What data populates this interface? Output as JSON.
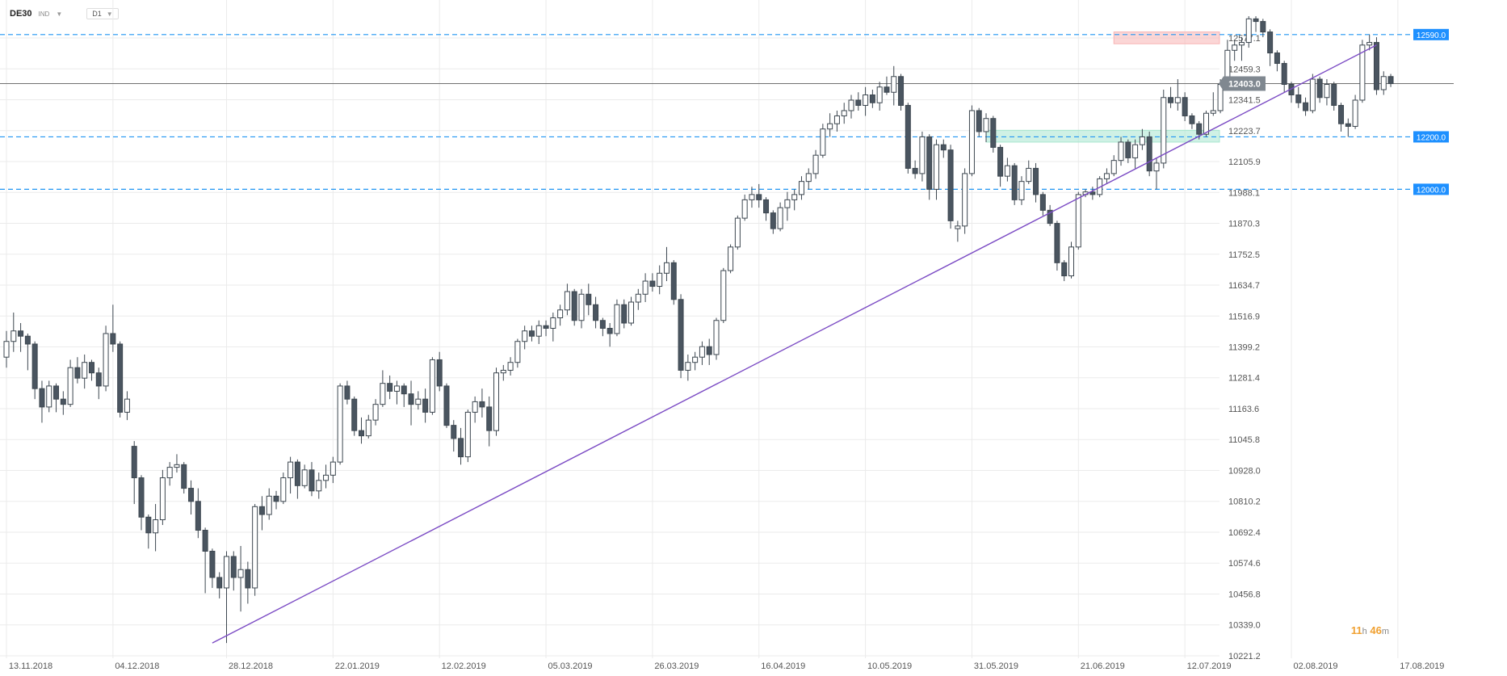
{
  "header": {
    "symbol": "DE30",
    "symbol_type": "IND",
    "timeframe": "D1"
  },
  "timer": {
    "hours": "11",
    "h_unit": "h",
    "minutes": "46",
    "m_unit": "m"
  },
  "colors": {
    "bull_fill": "#ffffff",
    "bear_fill": "#4a5560",
    "wick": "#3d4750",
    "grid": "#ebebeb",
    "dash_line": "#2196f3",
    "trend": "#7b4bc4",
    "tag": "#1e90ff",
    "price_tag": "#808890"
  },
  "chart_data": {
    "type": "candlestick",
    "title": "",
    "xlabel": "",
    "ylabel": "",
    "ylim": [
      10221.2,
      12695.0
    ],
    "yticks": [
      10221.2,
      10339.0,
      10456.8,
      10574.6,
      10692.4,
      10810.2,
      10928.0,
      11045.8,
      11163.6,
      11281.4,
      11399.2,
      11516.9,
      11634.7,
      11752.5,
      11870.3,
      11988.1,
      12105.9,
      12223.7,
      12341.5,
      12459.3,
      12577.1
    ],
    "ytick_labels": [
      "10221.2",
      "10339.0",
      "10456.8",
      "10574.6",
      "10692.4",
      "10810.2",
      "10928.0",
      "11045.8",
      "11163.6",
      "11281.4",
      "11399.2",
      "11516.9",
      "11634.7",
      "11752.5",
      "11870.3",
      "11988.1",
      "12105.9",
      "12223.7",
      "12341.5",
      "12459.3",
      "12577.1"
    ],
    "xticks": [
      {
        "index": 0,
        "label": "13.11.2018"
      },
      {
        "index": 15,
        "label": "04.12.2018"
      },
      {
        "index": 31,
        "label": "28.12.2018"
      },
      {
        "index": 46,
        "label": "22.01.2019"
      },
      {
        "index": 61,
        "label": "12.02.2019"
      },
      {
        "index": 76,
        "label": "05.03.2019"
      },
      {
        "index": 91,
        "label": "26.03.2019"
      },
      {
        "index": 106,
        "label": "16.04.2019"
      },
      {
        "index": 121,
        "label": "10.05.2019"
      },
      {
        "index": 136,
        "label": "31.05.2019"
      },
      {
        "index": 151,
        "label": "21.06.2019"
      },
      {
        "index": 166,
        "label": "12.07.2019"
      },
      {
        "index": 181,
        "label": "02.08.2019"
      },
      {
        "index": 196,
        "label": "17.08.2019"
      }
    ],
    "levels": [
      {
        "name": "resistance",
        "value": 12590.0,
        "label": "12590.0"
      },
      {
        "name": "support-mid",
        "value": 12200.0,
        "label": "12200.0"
      },
      {
        "name": "support-low",
        "value": 12000.0,
        "label": "12000.0"
      }
    ],
    "zones": [
      {
        "name": "resistance-zone",
        "from_index": 156,
        "to_index": 192,
        "low": 12555,
        "high": 12600,
        "color": "#f8b4b4"
      },
      {
        "name": "support-zone",
        "from_index": 138,
        "to_index": 192,
        "low": 12180,
        "high": 12225,
        "color": "#a8e6cf"
      }
    ],
    "current_price": {
      "value": 12403.0,
      "label": "12403.0"
    },
    "trendline": {
      "from": {
        "index": 29,
        "value": 10270
      },
      "to": {
        "index": 193,
        "value": 12550
      }
    },
    "candles": [
      [
        11360,
        11460,
        11320,
        11420
      ],
      [
        11420,
        11530,
        11380,
        11460
      ],
      [
        11460,
        11490,
        11380,
        11440
      ],
      [
        11440,
        11450,
        11310,
        11410
      ],
      [
        11410,
        11420,
        11200,
        11240
      ],
      [
        11240,
        11270,
        11110,
        11170
      ],
      [
        11170,
        11270,
        11150,
        11250
      ],
      [
        11250,
        11260,
        11150,
        11200
      ],
      [
        11200,
        11230,
        11140,
        11180
      ],
      [
        11180,
        11350,
        11170,
        11320
      ],
      [
        11320,
        11360,
        11260,
        11280
      ],
      [
        11280,
        11370,
        11240,
        11340
      ],
      [
        11340,
        11350,
        11270,
        11300
      ],
      [
        11300,
        11320,
        11200,
        11250
      ],
      [
        11250,
        11480,
        11230,
        11450
      ],
      [
        11450,
        11560,
        11380,
        11410
      ],
      [
        11410,
        11420,
        11130,
        11150
      ],
      [
        11150,
        11230,
        11120,
        11200
      ],
      [
        11020,
        11040,
        10800,
        10900
      ],
      [
        10900,
        10910,
        10700,
        10750
      ],
      [
        10750,
        10760,
        10630,
        10690
      ],
      [
        10690,
        10800,
        10620,
        10740
      ],
      [
        10740,
        10930,
        10720,
        10900
      ],
      [
        10900,
        10960,
        10870,
        10940
      ],
      [
        10940,
        10990,
        10920,
        10950
      ],
      [
        10950,
        10960,
        10840,
        10860
      ],
      [
        10860,
        10890,
        10760,
        10810
      ],
      [
        10810,
        10860,
        10670,
        10700
      ],
      [
        10700,
        10710,
        10460,
        10620
      ],
      [
        10620,
        10630,
        10480,
        10520
      ],
      [
        10520,
        10540,
        10440,
        10480
      ],
      [
        10480,
        10620,
        10270,
        10600
      ],
      [
        10600,
        10620,
        10470,
        10520
      ],
      [
        10520,
        10640,
        10390,
        10550
      ],
      [
        10550,
        10580,
        10420,
        10480
      ],
      [
        10480,
        10800,
        10450,
        10790
      ],
      [
        10790,
        10830,
        10700,
        10760
      ],
      [
        10760,
        10860,
        10740,
        10830
      ],
      [
        10830,
        10850,
        10780,
        10810
      ],
      [
        10810,
        10920,
        10800,
        10900
      ],
      [
        10900,
        10980,
        10840,
        10960
      ],
      [
        10960,
        10970,
        10820,
        10870
      ],
      [
        10870,
        10950,
        10860,
        10930
      ],
      [
        10930,
        10960,
        10830,
        10850
      ],
      [
        10850,
        10920,
        10820,
        10890
      ],
      [
        10890,
        10950,
        10860,
        10910
      ],
      [
        10910,
        10980,
        10880,
        10960
      ],
      [
        10960,
        11260,
        10950,
        11250
      ],
      [
        11250,
        11270,
        11180,
        11200
      ],
      [
        11200,
        11210,
        11060,
        11080
      ],
      [
        11080,
        11130,
        11030,
        11060
      ],
      [
        11060,
        11140,
        11050,
        11120
      ],
      [
        11120,
        11200,
        11100,
        11180
      ],
      [
        11180,
        11310,
        11170,
        11260
      ],
      [
        11260,
        11290,
        11200,
        11230
      ],
      [
        11230,
        11270,
        11180,
        11250
      ],
      [
        11250,
        11260,
        11170,
        11220
      ],
      [
        11220,
        11270,
        11100,
        11180
      ],
      [
        11180,
        11230,
        11160,
        11200
      ],
      [
        11200,
        11240,
        11110,
        11150
      ],
      [
        11150,
        11360,
        11140,
        11350
      ],
      [
        11350,
        11380,
        11230,
        11250
      ],
      [
        11250,
        11260,
        11090,
        11100
      ],
      [
        11100,
        11120,
        11000,
        11050
      ],
      [
        11050,
        11090,
        10950,
        10980
      ],
      [
        10980,
        11160,
        10960,
        11150
      ],
      [
        11150,
        11210,
        11110,
        11190
      ],
      [
        11190,
        11240,
        11130,
        11170
      ],
      [
        11170,
        11210,
        11020,
        11080
      ],
      [
        11080,
        11320,
        11060,
        11300
      ],
      [
        11300,
        11330,
        11270,
        11310
      ],
      [
        11310,
        11360,
        11290,
        11340
      ],
      [
        11340,
        11430,
        11320,
        11420
      ],
      [
        11420,
        11480,
        11390,
        11460
      ],
      [
        11460,
        11480,
        11420,
        11440
      ],
      [
        11440,
        11500,
        11410,
        11480
      ],
      [
        11480,
        11500,
        11440,
        11470
      ],
      [
        11470,
        11530,
        11420,
        11510
      ],
      [
        11510,
        11560,
        11480,
        11540
      ],
      [
        11540,
        11640,
        11520,
        11610
      ],
      [
        11610,
        11620,
        11480,
        11500
      ],
      [
        11500,
        11620,
        11470,
        11600
      ],
      [
        11600,
        11640,
        11520,
        11560
      ],
      [
        11560,
        11590,
        11470,
        11500
      ],
      [
        11500,
        11510,
        11440,
        11470
      ],
      [
        11470,
        11490,
        11400,
        11450
      ],
      [
        11450,
        11580,
        11440,
        11560
      ],
      [
        11560,
        11580,
        11470,
        11490
      ],
      [
        11490,
        11590,
        11480,
        11570
      ],
      [
        11570,
        11620,
        11540,
        11600
      ],
      [
        11600,
        11680,
        11570,
        11650
      ],
      [
        11650,
        11680,
        11610,
        11630
      ],
      [
        11630,
        11710,
        11600,
        11680
      ],
      [
        11680,
        11780,
        11650,
        11720
      ],
      [
        11720,
        11730,
        11560,
        11580
      ],
      [
        11580,
        11600,
        11280,
        11310
      ],
      [
        11310,
        11370,
        11270,
        11340
      ],
      [
        11340,
        11380,
        11310,
        11360
      ],
      [
        11360,
        11420,
        11330,
        11400
      ],
      [
        11400,
        11430,
        11330,
        11370
      ],
      [
        11370,
        11510,
        11350,
        11500
      ],
      [
        11500,
        11700,
        11490,
        11690
      ],
      [
        11690,
        11790,
        11680,
        11780
      ],
      [
        11780,
        11900,
        11770,
        11890
      ],
      [
        11890,
        11980,
        11880,
        11960
      ],
      [
        11960,
        12010,
        11930,
        11980
      ],
      [
        11980,
        12020,
        11930,
        11960
      ],
      [
        11960,
        11970,
        11880,
        11910
      ],
      [
        11910,
        11920,
        11830,
        11850
      ],
      [
        11850,
        11950,
        11840,
        11930
      ],
      [
        11930,
        11990,
        11880,
        11960
      ],
      [
        11960,
        12000,
        11920,
        11980
      ],
      [
        11980,
        12050,
        11960,
        12030
      ],
      [
        12030,
        12080,
        12000,
        12060
      ],
      [
        12060,
        12150,
        12040,
        12130
      ],
      [
        12130,
        12250,
        12120,
        12230
      ],
      [
        12230,
        12290,
        12200,
        12250
      ],
      [
        12250,
        12300,
        12220,
        12280
      ],
      [
        12280,
        12330,
        12250,
        12300
      ],
      [
        12300,
        12360,
        12270,
        12340
      ],
      [
        12340,
        12370,
        12300,
        12320
      ],
      [
        12320,
        12390,
        12280,
        12360
      ],
      [
        12360,
        12380,
        12310,
        12330
      ],
      [
        12330,
        12410,
        12300,
        12390
      ],
      [
        12390,
        12430,
        12360,
        12370
      ],
      [
        12370,
        12470,
        12320,
        12430
      ],
      [
        12430,
        12440,
        12300,
        12320
      ],
      [
        12320,
        12330,
        12060,
        12080
      ],
      [
        12080,
        12110,
        12040,
        12060
      ],
      [
        12060,
        12220,
        12030,
        12200
      ],
      [
        12200,
        12210,
        11960,
        12000
      ],
      [
        12000,
        12190,
        11960,
        12170
      ],
      [
        12170,
        12190,
        12120,
        12150
      ],
      [
        12150,
        12170,
        11850,
        11880
      ],
      [
        11850,
        11880,
        11800,
        11860
      ],
      [
        11860,
        12080,
        11830,
        12060
      ],
      [
        12060,
        12320,
        12050,
        12300
      ],
      [
        12300,
        12310,
        12200,
        12220
      ],
      [
        12220,
        12290,
        12180,
        12270
      ],
      [
        12270,
        12280,
        12140,
        12160
      ],
      [
        12160,
        12170,
        12010,
        12050
      ],
      [
        12050,
        12120,
        12030,
        12090
      ],
      [
        12090,
        12100,
        11940,
        11960
      ],
      [
        11960,
        12050,
        11940,
        12030
      ],
      [
        12030,
        12110,
        12020,
        12080
      ],
      [
        12080,
        12100,
        11950,
        11980
      ],
      [
        11980,
        11990,
        11900,
        11920
      ],
      [
        11920,
        11940,
        11860,
        11870
      ],
      [
        11870,
        11880,
        11690,
        11720
      ],
      [
        11720,
        11730,
        11650,
        11670
      ],
      [
        11670,
        11800,
        11660,
        11780
      ],
      [
        11780,
        11990,
        11770,
        11980
      ],
      [
        11980,
        12000,
        11970,
        11990
      ],
      [
        11990,
        12010,
        11960,
        11980
      ],
      [
        11980,
        12050,
        11970,
        12040
      ],
      [
        12040,
        12080,
        12020,
        12060
      ],
      [
        12060,
        12130,
        12050,
        12110
      ],
      [
        12110,
        12200,
        12090,
        12180
      ],
      [
        12180,
        12190,
        12100,
        12120
      ],
      [
        12120,
        12190,
        12080,
        12170
      ],
      [
        12170,
        12230,
        12150,
        12200
      ],
      [
        12200,
        12220,
        12050,
        12070
      ],
      [
        12070,
        12120,
        12000,
        12100
      ],
      [
        12100,
        12380,
        12080,
        12350
      ],
      [
        12350,
        12390,
        12310,
        12330
      ],
      [
        12330,
        12420,
        12300,
        12350
      ],
      [
        12350,
        12370,
        12260,
        12280
      ],
      [
        12280,
        12290,
        12230,
        12250
      ],
      [
        12250,
        12260,
        12190,
        12210
      ],
      [
        12210,
        12300,
        12200,
        12290
      ],
      [
        12290,
        12370,
        12280,
        12300
      ],
      [
        12300,
        12420,
        12290,
        12400
      ],
      [
        12400,
        12570,
        12390,
        12530
      ],
      [
        12530,
        12570,
        12490,
        12550
      ],
      [
        12550,
        12580,
        12490,
        12560
      ],
      [
        12560,
        12660,
        12540,
        12650
      ],
      [
        12650,
        12660,
        12600,
        12640
      ],
      [
        12640,
        12650,
        12580,
        12600
      ],
      [
        12600,
        12610,
        12470,
        12520
      ],
      [
        12520,
        12530,
        12450,
        12480
      ],
      [
        12480,
        12490,
        12370,
        12400
      ],
      [
        12400,
        12410,
        12330,
        12360
      ],
      [
        12360,
        12390,
        12310,
        12330
      ],
      [
        12330,
        12350,
        12280,
        12300
      ],
      [
        12300,
        12440,
        12290,
        12420
      ],
      [
        12420,
        12430,
        12330,
        12350
      ],
      [
        12350,
        12420,
        12320,
        12400
      ],
      [
        12400,
        12410,
        12300,
        12320
      ],
      [
        12320,
        12330,
        12220,
        12250
      ],
      [
        12250,
        12270,
        12200,
        12240
      ],
      [
        12240,
        12360,
        12230,
        12340
      ],
      [
        12340,
        12570,
        12330,
        12550
      ],
      [
        12550,
        12590,
        12530,
        12560
      ],
      [
        12560,
        12580,
        12360,
        12380
      ],
      [
        12380,
        12450,
        12360,
        12430
      ],
      [
        12430,
        12440,
        12390,
        12403
      ]
    ]
  }
}
